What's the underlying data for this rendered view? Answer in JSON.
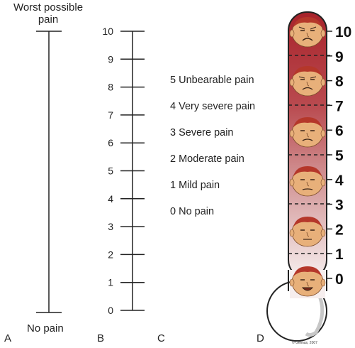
{
  "panel_a": {
    "top_label_line1": "Worst possible",
    "top_label_line2": "pain",
    "bottom_label": "No pain",
    "letter": "A"
  },
  "panel_b": {
    "letter": "B",
    "ticks": [
      "10",
      "9",
      "8",
      "7",
      "6",
      "5",
      "4",
      "3",
      "2",
      "1",
      "0"
    ]
  },
  "panel_c": {
    "letter": "C",
    "items": [
      "5 Unbearable pain",
      "4 Very severe pain",
      "3 Severe pain",
      "2 Moderate pain",
      "1 Mild pain",
      "0 No pain"
    ]
  },
  "panel_d": {
    "letter": "D",
    "numbers": [
      "10",
      "9",
      "8",
      "7",
      "6",
      "5",
      "4",
      "3",
      "2",
      "1",
      "0"
    ],
    "copyright": "© Gelinas, 2007",
    "colors": {
      "top": "#a8232b",
      "bottom": "#f6eeee",
      "face": "#e8b07a",
      "hair": "#b5372a"
    }
  }
}
